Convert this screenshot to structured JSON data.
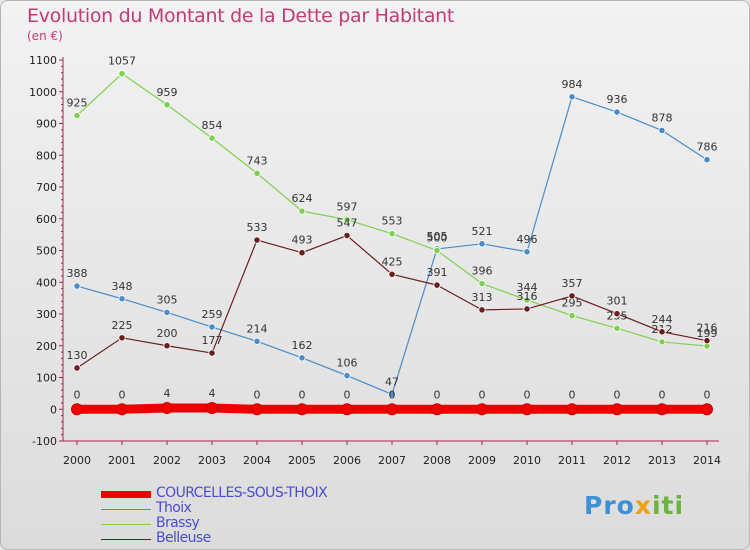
{
  "logo_text": "Proxiti",
  "chart_data": {
    "type": "line",
    "title": "Evolution du Montant de la Dette par Habitant",
    "ylabel": "(en €)",
    "xlabel": "",
    "x": [
      "2000",
      "2001",
      "2002",
      "2003",
      "2004",
      "2005",
      "2006",
      "2007",
      "2008",
      "2009",
      "2010",
      "2011",
      "2012",
      "2013",
      "2014"
    ],
    "ylim": [
      -100,
      1100
    ],
    "yticks": [
      -100,
      0,
      100,
      200,
      300,
      400,
      500,
      600,
      700,
      800,
      900,
      1000,
      1100
    ],
    "grid": false,
    "legend_position": "bottom-left",
    "series": [
      {
        "name": "COURCELLES-SOUS-THOIX",
        "color": "#ee0000",
        "values": [
          0,
          0,
          4,
          4,
          0,
          0,
          0,
          0,
          0,
          0,
          0,
          0,
          0,
          0,
          0
        ]
      },
      {
        "name": "Thoix",
        "color": "#4a8bca",
        "values": [
          388,
          348,
          305,
          259,
          214,
          162,
          106,
          47,
          505,
          521,
          496,
          984,
          936,
          878,
          786
        ]
      },
      {
        "name": "Brassy",
        "color": "#7ed050",
        "values": [
          925,
          1057,
          959,
          854,
          743,
          624,
          597,
          553,
          500,
          396,
          344,
          295,
          255,
          212,
          199
        ]
      },
      {
        "name": "Belleuse",
        "color": "#6b1e1e",
        "values": [
          130,
          225,
          200,
          177,
          533,
          493,
          547,
          425,
          391,
          313,
          316,
          357,
          301,
          244,
          216
        ]
      }
    ]
  }
}
